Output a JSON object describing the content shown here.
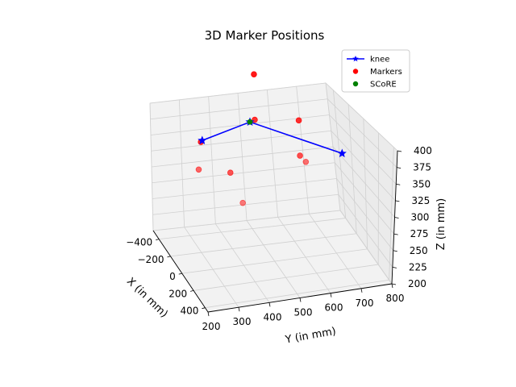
{
  "chart_data": {
    "type": "scatter3d",
    "title": "3D Marker Positions",
    "xlabel": "X (in mm)",
    "ylabel": "Y (in mm)",
    "zlabel": "Z (in mm)",
    "xlim": [
      -500,
      450
    ],
    "ylim": [
      200,
      800
    ],
    "zlim": [
      200,
      400
    ],
    "x_ticks": [
      -400,
      -200,
      0,
      200,
      400
    ],
    "y_ticks": [
      200,
      300,
      400,
      500,
      600,
      700,
      800
    ],
    "z_ticks": [
      200,
      225,
      250,
      275,
      300,
      325,
      350,
      375,
      400
    ],
    "grid": true,
    "legend_position": "top-right",
    "legend": [
      {
        "label": "knee",
        "marker": "star-line",
        "color": "#0000ff"
      },
      {
        "label": "Markers",
        "marker": "dot",
        "color": "#ff0000"
      },
      {
        "label": "SCoRE",
        "marker": "dot",
        "color": "#008000"
      }
    ],
    "series": [
      {
        "name": "knee",
        "color": "#0000ff",
        "points": [
          {
            "x": -280,
            "y": 330,
            "z": 350
          },
          {
            "x": -180,
            "y": 470,
            "z": 380
          },
          {
            "x": 130,
            "y": 700,
            "z": 360
          }
        ]
      },
      {
        "name": "Markers",
        "color": "#ff0000",
        "points": [
          {
            "x": -320,
            "y": 520,
            "z": 440
          },
          {
            "x": -150,
            "y": 480,
            "z": 385
          },
          {
            "x": -180,
            "y": 630,
            "z": 380
          },
          {
            "x": -250,
            "y": 320,
            "z": 350
          },
          {
            "x": 200,
            "y": 230,
            "z": 340
          },
          {
            "x": 90,
            "y": 350,
            "z": 330
          },
          {
            "x": 60,
            "y": 580,
            "z": 350
          },
          {
            "x": 300,
            "y": 550,
            "z": 360
          },
          {
            "x": 350,
            "y": 340,
            "z": 310
          }
        ]
      },
      {
        "name": "SCoRE",
        "color": "#008000",
        "points": [
          {
            "x": -180,
            "y": 470,
            "z": 380
          }
        ]
      }
    ]
  }
}
